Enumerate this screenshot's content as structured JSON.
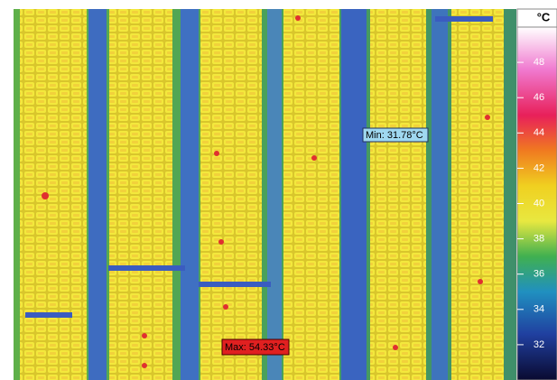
{
  "image": {
    "min_label": "Min: 31.78°C",
    "max_label": "Max: 54.33°C"
  },
  "scale": {
    "unit": "°C",
    "lim": [
      30,
      50
    ],
    "ticks": [
      32,
      34,
      36,
      38,
      40,
      42,
      44,
      46,
      48
    ]
  }
}
